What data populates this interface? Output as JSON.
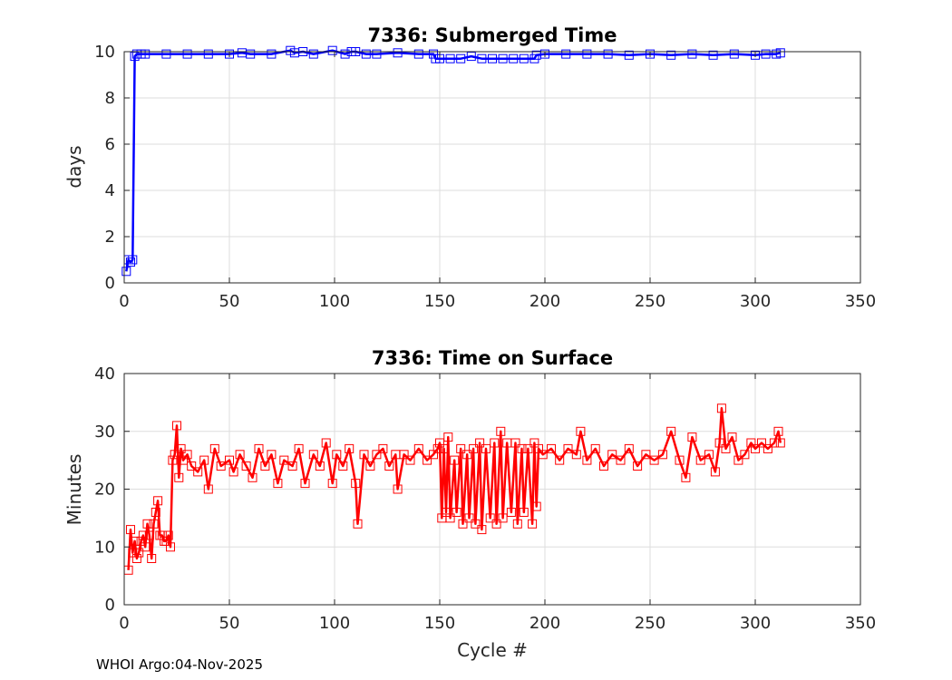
{
  "chart_data": [
    {
      "type": "line",
      "title": "7336: Submerged Time",
      "xlabel": "",
      "ylabel": "days",
      "xlim": [
        0,
        350
      ],
      "ylim": [
        0,
        10
      ],
      "xticks": [
        0,
        50,
        100,
        150,
        200,
        250,
        300,
        350
      ],
      "yticks": [
        0,
        2,
        4,
        6,
        8,
        10
      ],
      "grid": true,
      "marker": "square",
      "color": "#0000ff",
      "series": [
        {
          "name": "Submerged Time",
          "x": [
            1,
            2,
            3,
            4,
            5,
            6,
            8,
            10,
            20,
            30,
            40,
            50,
            56,
            60,
            70,
            79,
            81,
            85,
            90,
            99,
            105,
            108,
            110,
            115,
            120,
            130,
            140,
            147,
            148,
            150,
            155,
            160,
            165,
            170,
            175,
            180,
            185,
            190,
            195,
            196,
            200,
            210,
            220,
            230,
            240,
            250,
            260,
            270,
            280,
            290,
            300,
            305,
            310,
            312
          ],
          "values": [
            0.5,
            1.0,
            0.9,
            1.0,
            9.8,
            9.9,
            9.9,
            9.9,
            9.9,
            9.9,
            9.9,
            9.9,
            9.95,
            9.9,
            9.9,
            10.05,
            9.95,
            10.0,
            9.9,
            10.05,
            9.9,
            10.0,
            10.0,
            9.9,
            9.9,
            9.95,
            9.9,
            9.9,
            9.7,
            9.7,
            9.7,
            9.7,
            9.8,
            9.7,
            9.7,
            9.7,
            9.7,
            9.7,
            9.7,
            9.85,
            9.9,
            9.9,
            9.9,
            9.9,
            9.85,
            9.9,
            9.85,
            9.9,
            9.85,
            9.9,
            9.85,
            9.9,
            9.9,
            9.95
          ]
        }
      ]
    },
    {
      "type": "line",
      "title": "7336: Time on Surface",
      "xlabel": "Cycle #",
      "ylabel": "Minutes",
      "xlim": [
        0,
        350
      ],
      "ylim": [
        0,
        40
      ],
      "xticks": [
        0,
        50,
        100,
        150,
        200,
        250,
        300,
        350
      ],
      "yticks": [
        0,
        10,
        20,
        30,
        40
      ],
      "grid": true,
      "marker": "square",
      "color": "#ff0000",
      "series": [
        {
          "name": "Time on Surface",
          "x": [
            2,
            3,
            4,
            5,
            6,
            7,
            8,
            9,
            10,
            11,
            12,
            13,
            14,
            15,
            16,
            17,
            18,
            19,
            20,
            21,
            22,
            23,
            24,
            25,
            26,
            27,
            28,
            30,
            32,
            35,
            38,
            40,
            43,
            46,
            50,
            52,
            55,
            58,
            61,
            64,
            67,
            70,
            73,
            76,
            80,
            83,
            86,
            90,
            93,
            96,
            99,
            101,
            104,
            107,
            110,
            111,
            114,
            117,
            120,
            123,
            126,
            129,
            130,
            133,
            136,
            140,
            144,
            147,
            149,
            150,
            151,
            152,
            153,
            154,
            155,
            157,
            158,
            160,
            161,
            163,
            164,
            166,
            167,
            169,
            170,
            172,
            174,
            176,
            177,
            179,
            180,
            182,
            184,
            186,
            187,
            189,
            190,
            192,
            194,
            195,
            196,
            197,
            199,
            203,
            207,
            211,
            215,
            217,
            220,
            224,
            228,
            232,
            236,
            240,
            244,
            248,
            252,
            256,
            260,
            264,
            267,
            270,
            274,
            278,
            281,
            283,
            284,
            286,
            289,
            292,
            295,
            298,
            300,
            303,
            306,
            309,
            311,
            312
          ],
          "values": [
            6,
            13,
            9,
            11,
            8,
            9,
            11,
            12,
            10,
            14,
            12,
            8,
            14,
            16,
            18,
            12,
            12,
            11,
            11,
            12,
            10,
            25,
            26,
            31,
            22,
            27,
            25,
            26,
            24,
            23,
            25,
            20,
            27,
            24,
            25,
            23,
            26,
            24,
            22,
            27,
            24,
            26,
            21,
            25,
            24,
            27,
            21,
            26,
            24,
            28,
            21,
            26,
            24,
            27,
            21,
            14,
            26,
            24,
            26,
            27,
            24,
            26,
            20,
            26,
            25,
            27,
            25,
            26,
            27,
            28,
            15,
            27,
            16,
            29,
            15,
            25,
            16,
            27,
            14,
            26,
            15,
            27,
            14,
            28,
            13,
            27,
            15,
            28,
            14,
            30,
            15,
            28,
            16,
            28,
            14,
            27,
            16,
            27,
            14,
            28,
            17,
            27,
            26,
            27,
            25,
            27,
            26,
            30,
            25,
            27,
            24,
            26,
            25,
            27,
            24,
            26,
            25,
            26,
            30,
            25,
            22,
            29,
            25,
            26,
            23,
            28,
            34,
            27,
            29,
            25,
            26,
            28,
            27,
            28,
            27,
            28,
            30,
            28
          ]
        }
      ]
    }
  ],
  "footer": {
    "text": "WHOI Argo:04-Nov-2025"
  }
}
